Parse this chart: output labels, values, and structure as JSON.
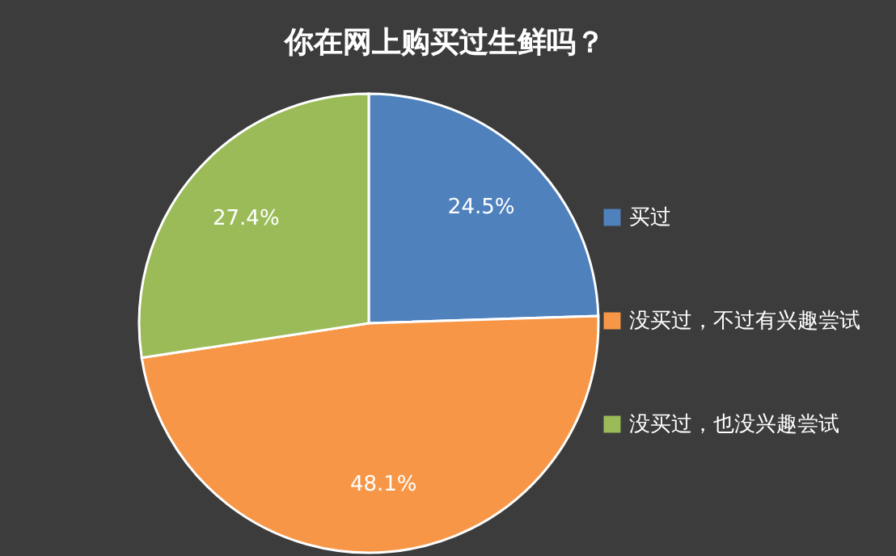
{
  "chart_data": {
    "type": "pie",
    "title": "你在网上购买过生鲜吗？",
    "categories": [
      "买过",
      "没买过，不过有兴趣尝试",
      "没买过，也没兴趣尝试"
    ],
    "values": [
      24.5,
      48.1,
      27.4
    ],
    "colors": [
      "#4f81bd",
      "#f79646",
      "#9bbb59"
    ],
    "value_labels": [
      "24.5%",
      "48.1%",
      "27.4%"
    ],
    "legend": "right"
  }
}
